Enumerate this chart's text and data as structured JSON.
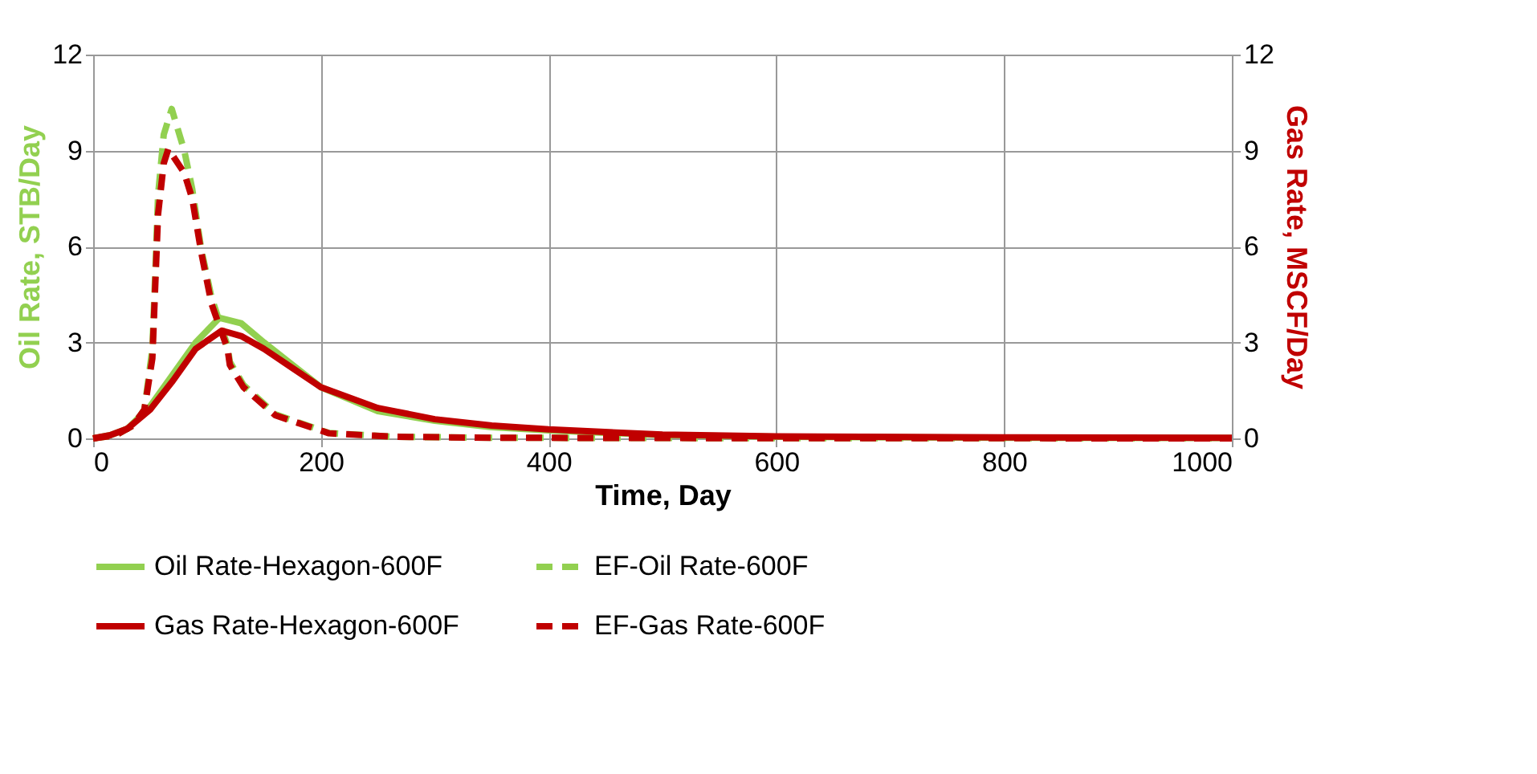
{
  "chart_data": {
    "type": "line",
    "xlabel": "Time, Day",
    "ylabel": "Oil Rate, STB/Day",
    "y2label": "Gas Rate, MSCF/Day",
    "xlim": [
      0,
      1000
    ],
    "xticks": [
      0,
      200,
      400,
      600,
      800,
      1000
    ],
    "ylim": [
      0,
      12
    ],
    "yticks": [
      0,
      3,
      6,
      9,
      12
    ],
    "y2lim": [
      0,
      12
    ],
    "y2ticks": [
      0,
      3,
      6,
      9,
      12
    ],
    "grid": true,
    "legend": "bottom",
    "marker": "none",
    "series": [
      {
        "name": "Oil Rate-Hexagon-600F",
        "color": "#92d050",
        "line_style": "solid",
        "axis": "y",
        "x": [
          0,
          15,
          30,
          50,
          70,
          90,
          111,
          130,
          150,
          175,
          200,
          250,
          300,
          350,
          400,
          500,
          600,
          800,
          1000
        ],
        "values": [
          0,
          0.1,
          0.3,
          1.0,
          2.0,
          3.0,
          3.77,
          3.6,
          3.0,
          2.3,
          1.6,
          0.85,
          0.55,
          0.35,
          0.25,
          0.1,
          0.05,
          0.02,
          0.01
        ]
      },
      {
        "name": "EF-Oil Rate-600F",
        "color": "#92d050",
        "line_style": "dashed",
        "axis": "y",
        "x": [
          0,
          20,
          35,
          45,
          52,
          55,
          57,
          62,
          69,
          80,
          87,
          95,
          104,
          118,
          120,
          132,
          160,
          207,
          264,
          350,
          500,
          1000
        ],
        "values": [
          0,
          0.1,
          0.4,
          0.9,
          2.8,
          5.6,
          7.6,
          9.5,
          10.3,
          9.0,
          7.8,
          5.9,
          4.4,
          2.9,
          2.4,
          1.67,
          0.75,
          0.17,
          0.05,
          0.02,
          0.01,
          0
        ]
      },
      {
        "name": "Gas Rate-Hexagon-600F",
        "color": "#c00000",
        "line_style": "solid",
        "axis": "y2",
        "x": [
          0,
          15,
          30,
          50,
          70,
          90,
          113,
          130,
          150,
          175,
          200,
          250,
          300,
          350,
          400,
          500,
          600,
          800,
          1000
        ],
        "values": [
          0,
          0.1,
          0.3,
          0.9,
          1.8,
          2.8,
          3.37,
          3.2,
          2.8,
          2.2,
          1.6,
          0.95,
          0.6,
          0.4,
          0.28,
          0.12,
          0.06,
          0.03,
          0.02
        ]
      },
      {
        "name": "EF-Gas Rate-600F",
        "color": "#c00000",
        "line_style": "dashed",
        "axis": "y2",
        "x": [
          0,
          20,
          35,
          45,
          52,
          55,
          57,
          62,
          66,
          80,
          87,
          95,
          104,
          118,
          120,
          132,
          160,
          207,
          264,
          350,
          500,
          1000
        ],
        "values": [
          0,
          0.1,
          0.4,
          0.9,
          2.5,
          5.2,
          7.0,
          8.6,
          9.05,
          8.3,
          7.5,
          5.8,
          4.2,
          2.8,
          2.3,
          1.6,
          0.72,
          0.16,
          0.05,
          0.02,
          0.01,
          0
        ]
      }
    ]
  }
}
